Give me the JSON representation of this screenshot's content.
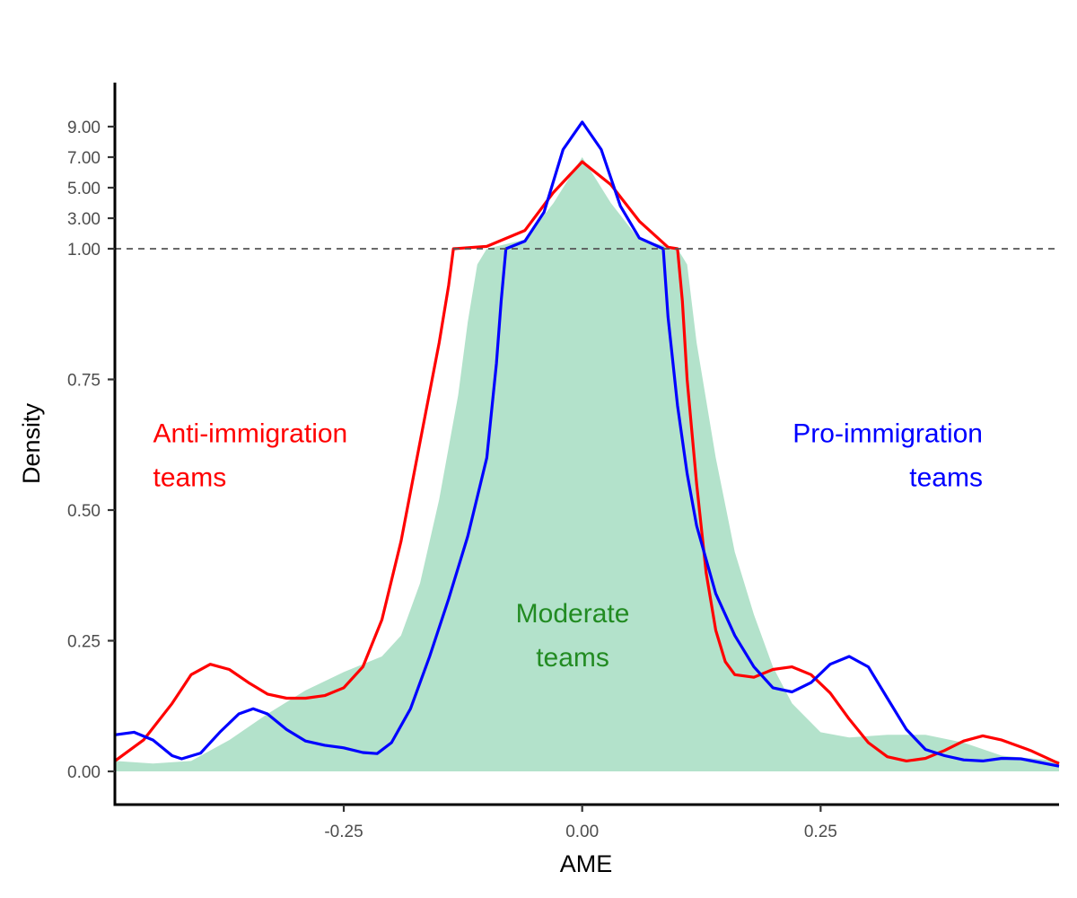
{
  "chart_data": {
    "type": "line",
    "title": "",
    "xlabel": "AME",
    "ylabel": "Density",
    "xlim": [
      -0.49,
      0.5
    ],
    "y_scale": "piecewise: linear 0-1, compressed 1-9",
    "x_ticks": [
      {
        "value": -0.25,
        "label": "-0.25"
      },
      {
        "value": 0.0,
        "label": "0.00"
      },
      {
        "value": 0.25,
        "label": "0.25"
      }
    ],
    "y_ticks": [
      {
        "value": 0.0,
        "label": "0.00"
      },
      {
        "value": 0.25,
        "label": "0.25"
      },
      {
        "value": 0.5,
        "label": "0.50"
      },
      {
        "value": 0.75,
        "label": "0.75"
      },
      {
        "value": 1.0,
        "label": "1.00"
      },
      {
        "value": 3.0,
        "label": "3.00"
      },
      {
        "value": 5.0,
        "label": "5.00"
      },
      {
        "value": 7.0,
        "label": "7.00"
      },
      {
        "value": 9.0,
        "label": "9.00"
      }
    ],
    "reference_line": {
      "y": 1.0,
      "style": "dashed",
      "color": "#555555"
    },
    "grid": false,
    "series": [
      {
        "color": "#b3e2cb",
        "kind": "area",
        "points": [
          [
            -0.49,
            0.02
          ],
          [
            -0.45,
            0.015
          ],
          [
            -0.41,
            0.02
          ],
          [
            -0.37,
            0.06
          ],
          [
            -0.33,
            0.11
          ],
          [
            -0.29,
            0.155
          ],
          [
            -0.25,
            0.19
          ],
          [
            -0.21,
            0.22
          ],
          [
            -0.19,
            0.26
          ],
          [
            -0.17,
            0.36
          ],
          [
            -0.15,
            0.52
          ],
          [
            -0.13,
            0.72
          ],
          [
            -0.12,
            0.86
          ],
          [
            -0.11,
            0.97
          ],
          [
            -0.1,
            1.0
          ],
          [
            -0.06,
            1.6
          ],
          [
            -0.03,
            4.0
          ],
          [
            0.0,
            7.0
          ],
          [
            0.03,
            4.0
          ],
          [
            0.06,
            1.6
          ],
          [
            0.1,
            1.0
          ],
          [
            0.11,
            0.97
          ],
          [
            0.12,
            0.82
          ],
          [
            0.14,
            0.6
          ],
          [
            0.16,
            0.42
          ],
          [
            0.18,
            0.3
          ],
          [
            0.2,
            0.2
          ],
          [
            0.22,
            0.13
          ],
          [
            0.25,
            0.075
          ],
          [
            0.28,
            0.065
          ],
          [
            0.32,
            0.07
          ],
          [
            0.36,
            0.07
          ],
          [
            0.4,
            0.055
          ],
          [
            0.44,
            0.03
          ],
          [
            0.5,
            0.02
          ]
        ]
      },
      {
        "color": "#ff0000",
        "kind": "line",
        "points": [
          [
            -0.49,
            0.02
          ],
          [
            -0.46,
            0.06
          ],
          [
            -0.43,
            0.13
          ],
          [
            -0.41,
            0.185
          ],
          [
            -0.39,
            0.205
          ],
          [
            -0.37,
            0.195
          ],
          [
            -0.35,
            0.17
          ],
          [
            -0.33,
            0.148
          ],
          [
            -0.31,
            0.14
          ],
          [
            -0.29,
            0.14
          ],
          [
            -0.27,
            0.145
          ],
          [
            -0.25,
            0.16
          ],
          [
            -0.23,
            0.2
          ],
          [
            -0.21,
            0.29
          ],
          [
            -0.19,
            0.44
          ],
          [
            -0.17,
            0.63
          ],
          [
            -0.15,
            0.82
          ],
          [
            -0.14,
            0.93
          ],
          [
            -0.135,
            1.0
          ],
          [
            -0.1,
            1.15
          ],
          [
            -0.06,
            2.2
          ],
          [
            -0.03,
            4.7
          ],
          [
            0.0,
            6.7
          ],
          [
            0.03,
            5.2
          ],
          [
            0.06,
            2.8
          ],
          [
            0.09,
            1.1
          ],
          [
            0.1,
            1.0
          ],
          [
            0.105,
            0.9
          ],
          [
            0.11,
            0.75
          ],
          [
            0.12,
            0.55
          ],
          [
            0.13,
            0.38
          ],
          [
            0.14,
            0.27
          ],
          [
            0.15,
            0.21
          ],
          [
            0.16,
            0.185
          ],
          [
            0.18,
            0.18
          ],
          [
            0.2,
            0.195
          ],
          [
            0.22,
            0.2
          ],
          [
            0.24,
            0.185
          ],
          [
            0.26,
            0.15
          ],
          [
            0.28,
            0.1
          ],
          [
            0.3,
            0.055
          ],
          [
            0.32,
            0.028
          ],
          [
            0.34,
            0.02
          ],
          [
            0.36,
            0.025
          ],
          [
            0.38,
            0.04
          ],
          [
            0.4,
            0.058
          ],
          [
            0.42,
            0.068
          ],
          [
            0.44,
            0.06
          ],
          [
            0.47,
            0.04
          ],
          [
            0.5,
            0.015
          ]
        ]
      },
      {
        "color": "#0000ff",
        "kind": "line",
        "points": [
          [
            -0.49,
            0.07
          ],
          [
            -0.47,
            0.075
          ],
          [
            -0.45,
            0.06
          ],
          [
            -0.43,
            0.03
          ],
          [
            -0.42,
            0.024
          ],
          [
            -0.4,
            0.035
          ],
          [
            -0.38,
            0.075
          ],
          [
            -0.36,
            0.11
          ],
          [
            -0.345,
            0.12
          ],
          [
            -0.33,
            0.11
          ],
          [
            -0.31,
            0.08
          ],
          [
            -0.29,
            0.058
          ],
          [
            -0.27,
            0.05
          ],
          [
            -0.25,
            0.045
          ],
          [
            -0.23,
            0.036
          ],
          [
            -0.215,
            0.034
          ],
          [
            -0.2,
            0.055
          ],
          [
            -0.18,
            0.12
          ],
          [
            -0.16,
            0.22
          ],
          [
            -0.14,
            0.33
          ],
          [
            -0.12,
            0.45
          ],
          [
            -0.1,
            0.6
          ],
          [
            -0.09,
            0.78
          ],
          [
            -0.085,
            0.9
          ],
          [
            -0.08,
            1.0
          ],
          [
            -0.06,
            1.5
          ],
          [
            -0.04,
            3.4
          ],
          [
            -0.02,
            7.5
          ],
          [
            0.0,
            9.3
          ],
          [
            0.02,
            7.5
          ],
          [
            0.04,
            3.8
          ],
          [
            0.06,
            1.7
          ],
          [
            0.085,
            1.0
          ],
          [
            0.09,
            0.87
          ],
          [
            0.1,
            0.7
          ],
          [
            0.11,
            0.57
          ],
          [
            0.12,
            0.47
          ],
          [
            0.14,
            0.34
          ],
          [
            0.16,
            0.26
          ],
          [
            0.18,
            0.2
          ],
          [
            0.2,
            0.16
          ],
          [
            0.22,
            0.152
          ],
          [
            0.24,
            0.17
          ],
          [
            0.26,
            0.205
          ],
          [
            0.28,
            0.22
          ],
          [
            0.3,
            0.2
          ],
          [
            0.32,
            0.14
          ],
          [
            0.34,
            0.08
          ],
          [
            0.36,
            0.042
          ],
          [
            0.38,
            0.03
          ],
          [
            0.4,
            0.022
          ],
          [
            0.42,
            0.02
          ],
          [
            0.44,
            0.025
          ],
          [
            0.46,
            0.024
          ],
          [
            0.5,
            0.01
          ]
        ]
      }
    ],
    "annotations": [
      {
        "lines": [
          "Anti-immigration",
          "teams"
        ],
        "x": -0.45,
        "y": 0.63,
        "align": "left",
        "color": "#ff0000"
      },
      {
        "lines": [
          "Moderate",
          "teams"
        ],
        "x": -0.01,
        "y": 0.285,
        "align": "center",
        "color": "#228b22"
      },
      {
        "lines": [
          "Pro-immigration",
          "teams"
        ],
        "x": 0.42,
        "y": 0.63,
        "align": "right",
        "color": "#0000ff"
      }
    ]
  }
}
